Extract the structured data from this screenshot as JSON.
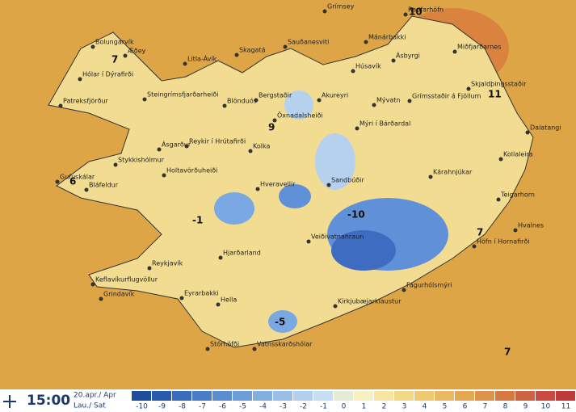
{
  "map": {
    "places": [
      "Grímsey",
      "Raufarhöfn",
      "Bolungarvík",
      "Æðey",
      "Mánárbakki",
      "Sauðanesviti",
      "Miðfjarðarnes",
      "Ásbyrgi",
      "Skagatá",
      "Litla-Ávík",
      "Húsavík",
      "Hólar í Dýrafirði",
      "Skjaldþingsstaðir",
      "Bergstaðir",
      "Akureyri",
      "Mývatn",
      "Grímsstaðir á Fjöllum",
      "Patreksfjörður",
      "Steingrímsfjarðarheiði",
      "Blönduós",
      "Öxnadalsheiði",
      "Mýri í Bárðardal",
      "Dalatangi",
      "Ásgarður",
      "Reykir í Hrútafirði",
      "Kolka",
      "Kollaleira",
      "Stykkishólmur",
      "Holtavörðuheiði",
      "Sandbúðir",
      "Kárahnjúkar",
      "Gufuskálar",
      "Bláfeldur",
      "Hveravellir",
      "Teigarhorn",
      "Hvalnes",
      "Veiðivatnahraun",
      "Höfn í Hornafirði",
      "Hjarðarland",
      "Reykjavík",
      "Keflavíkurflugvöllur",
      "Fagurhólsmýri",
      "Eyrarbakki",
      "Grindavík",
      "Hella",
      "Kirkjubæjarklaustur",
      "Stórhöfði",
      "Vatnsskarðshólar"
    ],
    "temperatures": [
      10,
      7,
      11,
      9,
      6,
      -1,
      -10,
      7,
      -5,
      7
    ]
  },
  "footer": {
    "time": "15:00",
    "date": "20.apr./ Apr",
    "day": "Lau./ Sat",
    "legend": {
      "values": [
        -10,
        -9,
        -8,
        -7,
        -6,
        -5,
        -4,
        -3,
        -2,
        -1,
        0,
        1,
        2,
        3,
        4,
        5,
        6,
        7,
        8,
        9,
        10,
        11
      ],
      "colors": [
        "#1f4c9c",
        "#2a5cac",
        "#386cbc",
        "#4a7ec6",
        "#5a8ecf",
        "#6c9ed8",
        "#82afe0",
        "#9abfe7",
        "#b2d0ee",
        "#c9def0",
        "#e2ecd6",
        "#f6f0c2",
        "#f6e6a2",
        "#f3d888",
        "#efc972",
        "#eab962",
        "#e5a852",
        "#df924a",
        "#d77a42",
        "#cf6240",
        "#c84a40",
        "#bf3a3a"
      ]
    }
  }
}
